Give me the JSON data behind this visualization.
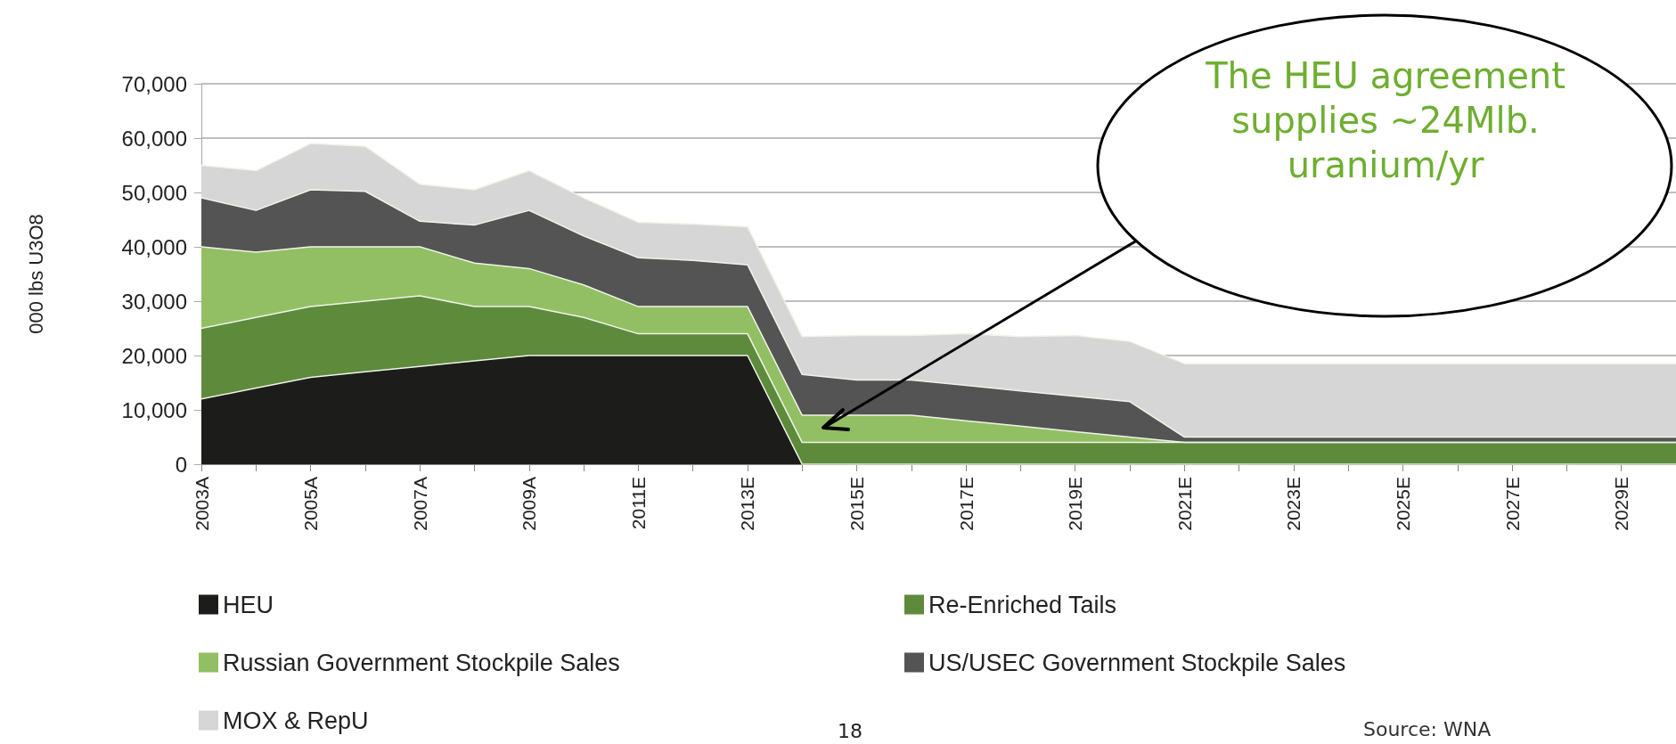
{
  "chart_data": {
    "type": "area",
    "stacked": true,
    "ylabel": "000 lbs U3O8",
    "categories": [
      "2003A",
      null,
      "2005A",
      null,
      "2007A",
      null,
      "2009A",
      null,
      "2011E",
      null,
      "2013E",
      null,
      "2015E",
      null,
      "2017E",
      null,
      "2019E",
      null,
      "2021E",
      null,
      "2023E",
      null,
      "2025E",
      null,
      "2027E",
      null,
      "2029E",
      null
    ],
    "series": [
      {
        "name": "HEU",
        "color": "#1c1c1a",
        "values": [
          12000,
          14000,
          16000,
          17000,
          18000,
          19000,
          20000,
          20000,
          20000,
          20000,
          20000,
          0,
          0,
          0,
          0,
          0,
          0,
          0,
          0,
          0,
          0,
          0,
          0,
          0,
          0,
          0,
          0,
          0
        ]
      },
      {
        "name": "Re-Enriched Tails",
        "color": "#5e8a3c",
        "values": [
          13000,
          13000,
          13000,
          13000,
          13000,
          10000,
          9000,
          7000,
          4000,
          4000,
          4000,
          4000,
          4000,
          4000,
          4000,
          4000,
          4000,
          4000,
          4000,
          4000,
          4000,
          4000,
          4000,
          4000,
          4000,
          4000,
          4000,
          4000
        ]
      },
      {
        "name": "Russian Government Stockpile Sales",
        "color": "#93bf64",
        "values": [
          15000,
          12000,
          11000,
          10000,
          9000,
          8000,
          7000,
          6000,
          5000,
          5000,
          5000,
          5000,
          5000,
          5000,
          4000,
          3000,
          2000,
          1000,
          0,
          0,
          0,
          0,
          0,
          0,
          0,
          0,
          0,
          0
        ]
      },
      {
        "name": "US/USEC Government Stockpile Sales",
        "color": "#545454",
        "values": [
          9000,
          7700,
          10500,
          10200,
          4700,
          7000,
          10700,
          9000,
          9000,
          8500,
          7700,
          7500,
          6500,
          6500,
          6500,
          6500,
          6500,
          6500,
          1000,
          1000,
          1000,
          1000,
          1000,
          1000,
          1000,
          1000,
          1000,
          1000
        ]
      },
      {
        "name": "MOX & RepU",
        "color": "#d6d6d6",
        "values": [
          6000,
          7300,
          8500,
          8300,
          6800,
          6500,
          7300,
          7000,
          6500,
          6700,
          7000,
          7000,
          8200,
          8200,
          9500,
          10000,
          11200,
          11100,
          13500,
          13500,
          13500,
          13500,
          13500,
          13500,
          13500,
          13500,
          13500,
          13500
        ]
      }
    ],
    "ylim": [
      0,
      70000
    ],
    "yticks": [
      0,
      {
        "value": 10000,
        "label": "10,000"
      },
      {
        "value": 20000,
        "label": "20,000"
      },
      {
        "value": 30000,
        "label": "30,000"
      },
      {
        "value": 40000,
        "label": "40,000"
      },
      {
        "value": 50000,
        "label": "50,000"
      },
      {
        "value": 60000,
        "label": "60,000"
      },
      {
        "value": 70000,
        "label": "70,000"
      }
    ],
    "grid": "y",
    "legend": "bottom",
    "annotations": [
      "The HEU agreement supplies ~24Mlb. uranium/yr",
      "18",
      "Source: WNA"
    ]
  }
}
